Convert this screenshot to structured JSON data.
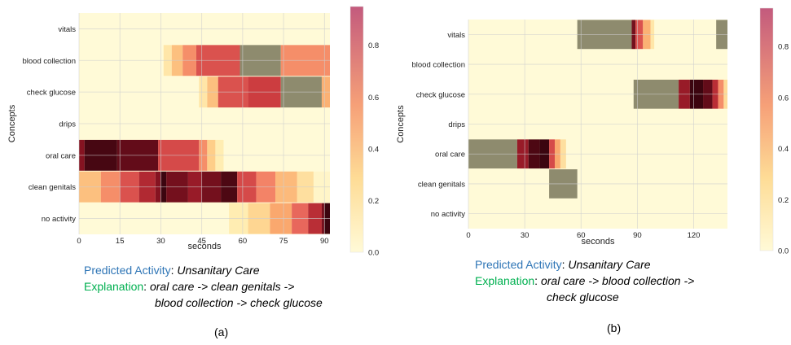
{
  "chart_data": [
    {
      "type": "heatmap",
      "panel_label": "(a)",
      "xlabel": "seconds",
      "ylabel": "Concepts",
      "concepts": [
        "vitals",
        "blood collection",
        "check glucose",
        "drips",
        "oral care",
        "clean genitals",
        "no activity"
      ],
      "xlim": [
        0,
        92
      ],
      "xticks": [
        0,
        15,
        30,
        45,
        60,
        75,
        90
      ],
      "colorbar_ticks": [
        "0.0",
        "0.2",
        "0.4",
        "0.6",
        "0.8"
      ],
      "colorbar_range": [
        0,
        0.95
      ],
      "grid": true,
      "rows": [
        {
          "concept": "vitals",
          "segments": []
        },
        {
          "concept": "blood collection",
          "segments": [
            {
              "x0": 31,
              "x1": 34,
              "v": 0.15
            },
            {
              "x0": 34,
              "x1": 38,
              "v": 0.3
            },
            {
              "x0": 38,
              "x1": 43,
              "v": 0.45
            },
            {
              "x0": 43,
              "x1": 59,
              "v": 0.6
            },
            {
              "x0": 59,
              "x1": 74,
              "v": "mask"
            },
            {
              "x0": 74,
              "x1": 92,
              "v": 0.45
            }
          ]
        },
        {
          "concept": "check glucose",
          "segments": [
            {
              "x0": 44,
              "x1": 47,
              "v": 0.15
            },
            {
              "x0": 47,
              "x1": 51,
              "v": 0.3
            },
            {
              "x0": 51,
              "x1": 62,
              "v": 0.6
            },
            {
              "x0": 62,
              "x1": 74,
              "v": 0.65
            },
            {
              "x0": 74,
              "x1": 89,
              "v": "mask"
            },
            {
              "x0": 89,
              "x1": 92,
              "v": 0.35
            }
          ]
        },
        {
          "concept": "drips",
          "segments": []
        },
        {
          "concept": "oral care",
          "segments": [
            {
              "x0": 0,
              "x1": 2,
              "v": 0.82
            },
            {
              "x0": 2,
              "x1": 14,
              "v": 0.93
            },
            {
              "x0": 14,
              "x1": 29,
              "v": 0.88
            },
            {
              "x0": 29,
              "x1": 44,
              "v": 0.62
            },
            {
              "x0": 44,
              "x1": 47,
              "v": 0.45
            },
            {
              "x0": 47,
              "x1": 50,
              "v": 0.25
            },
            {
              "x0": 50,
              "x1": 53,
              "v": 0.12
            }
          ]
        },
        {
          "concept": "clean genitals",
          "segments": [
            {
              "x0": 0,
              "x1": 8,
              "v": 0.3
            },
            {
              "x0": 8,
              "x1": 15,
              "v": 0.45
            },
            {
              "x0": 15,
              "x1": 22,
              "v": 0.6
            },
            {
              "x0": 22,
              "x1": 28,
              "v": 0.72
            },
            {
              "x0": 28,
              "x1": 30,
              "v": 0.82
            },
            {
              "x0": 30,
              "x1": 32,
              "v": 0.97
            },
            {
              "x0": 32,
              "x1": 40,
              "v": 0.85
            },
            {
              "x0": 40,
              "x1": 45,
              "v": 0.78
            },
            {
              "x0": 45,
              "x1": 52,
              "v": 0.85
            },
            {
              "x0": 52,
              "x1": 58,
              "v": 0.92
            },
            {
              "x0": 58,
              "x1": 65,
              "v": 0.62
            },
            {
              "x0": 65,
              "x1": 72,
              "v": 0.48
            },
            {
              "x0": 72,
              "x1": 80,
              "v": 0.32
            },
            {
              "x0": 80,
              "x1": 86,
              "v": 0.18
            },
            {
              "x0": 86,
              "x1": 92,
              "v": 0.05
            }
          ]
        },
        {
          "concept": "no activity",
          "segments": [
            {
              "x0": 55,
              "x1": 62,
              "v": 0.12
            },
            {
              "x0": 62,
              "x1": 70,
              "v": 0.22
            },
            {
              "x0": 70,
              "x1": 78,
              "v": 0.38
            },
            {
              "x0": 78,
              "x1": 84,
              "v": 0.55
            },
            {
              "x0": 84,
              "x1": 89,
              "v": 0.7
            },
            {
              "x0": 89,
              "x1": 90,
              "v": 0.85
            },
            {
              "x0": 90,
              "x1": 92,
              "v": 0.97
            }
          ]
        }
      ],
      "caption": {
        "predicted_label": "Predicted Activity",
        "predicted_value": "Unsanitary Care",
        "explanation_label": "Explanation",
        "explanation_line1": "oral care -> clean genitals ->",
        "explanation_line2": "blood collection -> check glucose"
      }
    },
    {
      "type": "heatmap",
      "panel_label": "(b)",
      "xlabel": "seconds",
      "ylabel": "Concepts",
      "concepts": [
        "vitals",
        "blood collection",
        "check glucose",
        "drips",
        "oral care",
        "clean genitals",
        "no activity"
      ],
      "xlim": [
        0,
        138
      ],
      "xticks": [
        0,
        30,
        60,
        90,
        120
      ],
      "colorbar_ticks": [
        "0.0",
        "0.2",
        "0.4",
        "0.6",
        "0.8"
      ],
      "colorbar_range": [
        0,
        0.95
      ],
      "grid": true,
      "rows": [
        {
          "concept": "vitals",
          "segments": [
            {
              "x0": 58,
              "x1": 87,
              "v": "mask"
            },
            {
              "x0": 87,
              "x1": 89,
              "v": 0.85
            },
            {
              "x0": 89,
              "x1": 93,
              "v": 0.6
            },
            {
              "x0": 93,
              "x1": 97,
              "v": 0.35
            },
            {
              "x0": 97,
              "x1": 99,
              "v": 0.15
            },
            {
              "x0": 132,
              "x1": 138,
              "v": "mask"
            }
          ]
        },
        {
          "concept": "blood collection",
          "segments": []
        },
        {
          "concept": "check glucose",
          "segments": [
            {
              "x0": 88,
              "x1": 112,
              "v": "mask"
            },
            {
              "x0": 112,
              "x1": 118,
              "v": 0.78
            },
            {
              "x0": 118,
              "x1": 125,
              "v": 0.95
            },
            {
              "x0": 125,
              "x1": 130,
              "v": 0.88
            },
            {
              "x0": 130,
              "x1": 133,
              "v": 0.7
            },
            {
              "x0": 133,
              "x1": 136,
              "v": 0.45
            },
            {
              "x0": 136,
              "x1": 138,
              "v": 0.2
            }
          ]
        },
        {
          "concept": "drips",
          "segments": []
        },
        {
          "concept": "oral care",
          "segments": [
            {
              "x0": 0,
              "x1": 26,
              "v": "mask"
            },
            {
              "x0": 26,
              "x1": 32,
              "v": 0.78
            },
            {
              "x0": 32,
              "x1": 38,
              "v": 0.92
            },
            {
              "x0": 38,
              "x1": 43,
              "v": 0.96
            },
            {
              "x0": 43,
              "x1": 46,
              "v": 0.62
            },
            {
              "x0": 46,
              "x1": 49,
              "v": 0.38
            },
            {
              "x0": 49,
              "x1": 52,
              "v": 0.18
            }
          ]
        },
        {
          "concept": "clean genitals",
          "segments": [
            {
              "x0": 43,
              "x1": 58,
              "v": "mask"
            }
          ]
        },
        {
          "concept": "no activity",
          "segments": []
        }
      ],
      "caption": {
        "predicted_label": "Predicted Activity",
        "predicted_value": "Unsanitary Care",
        "explanation_label": "Explanation",
        "explanation_line1": "oral care ->  blood collection ->",
        "explanation_line2": "check glucose"
      }
    }
  ]
}
